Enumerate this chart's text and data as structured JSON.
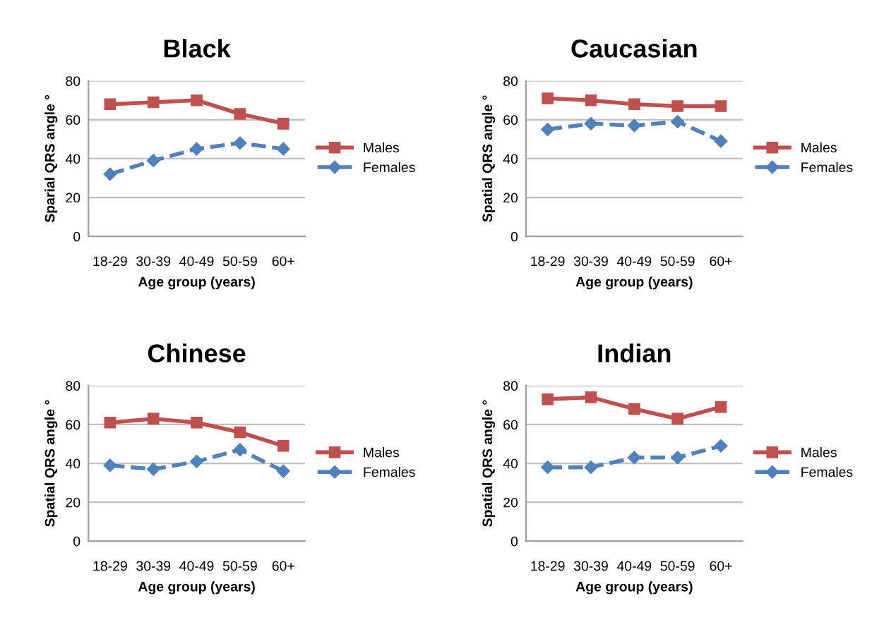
{
  "chart_data": [
    {
      "type": "line",
      "title": "Black",
      "xlabel": "Age group (years)",
      "ylabel": "Sparial QRS angle °",
      "categories": [
        "18-29",
        "30-39",
        "40-49",
        "50-59",
        "60+"
      ],
      "ylim": [
        0,
        80
      ],
      "yticks": [
        0,
        20,
        40,
        60,
        80
      ],
      "grid": "y",
      "legend": "right",
      "series": [
        {
          "name": "Males",
          "color": "#c0504d",
          "marker": "square",
          "line_style": "solid",
          "values": [
            68,
            69,
            70,
            63,
            58
          ]
        },
        {
          "name": "Females",
          "color": "#4f81bd",
          "marker": "diamond",
          "line_style": "dashed",
          "values": [
            32,
            39,
            45,
            48,
            45
          ]
        }
      ]
    },
    {
      "type": "line",
      "title": "Caucasian",
      "xlabel": "Age group (years)",
      "ylabel": "Spatial QRS angle °",
      "categories": [
        "18-29",
        "30-39",
        "40-49",
        "50-59",
        "60+"
      ],
      "ylim": [
        0,
        80
      ],
      "yticks": [
        0,
        20,
        40,
        60,
        80
      ],
      "grid": "y",
      "legend": "right",
      "series": [
        {
          "name": "Males",
          "color": "#c0504d",
          "marker": "square",
          "line_style": "solid",
          "values": [
            71,
            70,
            68,
            67,
            67
          ]
        },
        {
          "name": "Females",
          "color": "#4f81bd",
          "marker": "diamond",
          "line_style": "dashed",
          "values": [
            55,
            58,
            57,
            59,
            49
          ]
        }
      ]
    },
    {
      "type": "line",
      "title": "Chinese",
      "xlabel": "Age group (years)",
      "ylabel": "Spatial QRS angle °",
      "categories": [
        "18-29",
        "30-39",
        "40-49",
        "50-59",
        "60+"
      ],
      "ylim": [
        0,
        80
      ],
      "yticks": [
        0,
        20,
        40,
        60,
        80
      ],
      "grid": "y",
      "legend": "right",
      "series": [
        {
          "name": "Males",
          "color": "#c0504d",
          "marker": "square",
          "line_style": "solid",
          "values": [
            61,
            63,
            61,
            56,
            49
          ]
        },
        {
          "name": "Females",
          "color": "#4f81bd",
          "marker": "diamond",
          "line_style": "dashed",
          "values": [
            39,
            37,
            41,
            47,
            36
          ]
        }
      ]
    },
    {
      "type": "line",
      "title": "Indian",
      "xlabel": "Age group (years)",
      "ylabel": "Spatial QRS angle °",
      "categories": [
        "18-29",
        "30-39",
        "40-49",
        "50-59",
        "60+"
      ],
      "ylim": [
        0,
        80
      ],
      "yticks": [
        0,
        20,
        40,
        60,
        80
      ],
      "grid": "y",
      "legend": "right",
      "series": [
        {
          "name": "Males",
          "color": "#c0504d",
          "marker": "square",
          "line_style": "solid",
          "values": [
            73,
            74,
            68,
            63,
            69
          ]
        },
        {
          "name": "Females",
          "color": "#4f81bd",
          "marker": "diamond",
          "line_style": "dashed",
          "values": [
            38,
            38,
            43,
            43,
            49
          ]
        }
      ]
    }
  ]
}
